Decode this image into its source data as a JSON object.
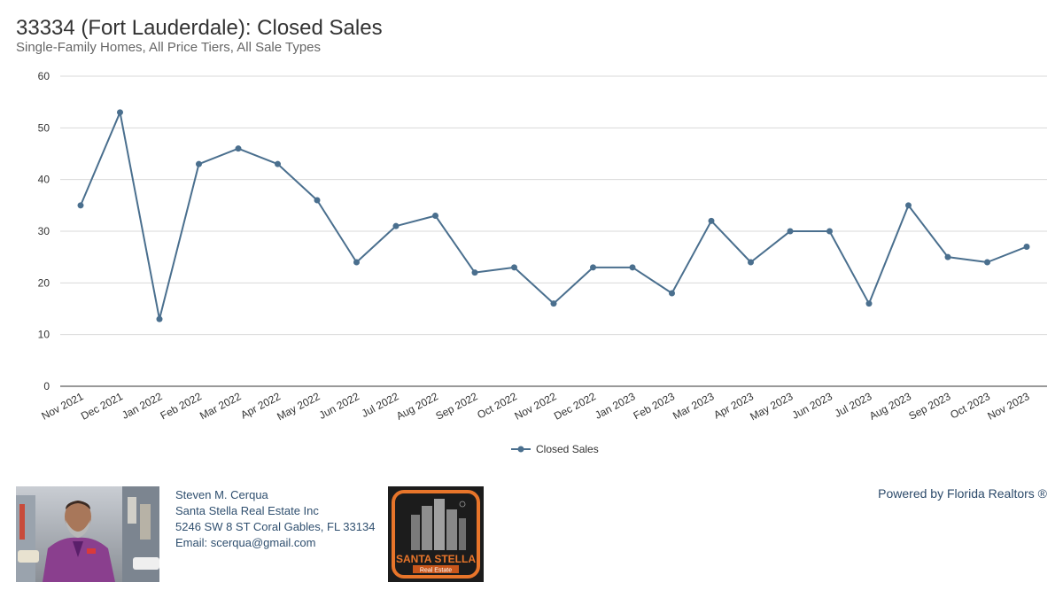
{
  "header": {
    "title": "33334 (Fort Lauderdale): Closed Sales",
    "subtitle": "Single-Family Homes, All Price Tiers, All Sale Types"
  },
  "chart_data": {
    "type": "line",
    "title": "33334 (Fort Lauderdale): Closed Sales",
    "subtitle": "Single-Family Homes, All Price Tiers, All Sale Types",
    "xlabel": "",
    "ylabel": "",
    "ylim": [
      0,
      60
    ],
    "yticks": [
      0,
      10,
      20,
      30,
      40,
      50,
      60
    ],
    "grid": "horizontal",
    "legend_position": "bottom-center",
    "categories": [
      "Nov 2021",
      "Dec 2021",
      "Jan 2022",
      "Feb 2022",
      "Mar 2022",
      "Apr 2022",
      "May 2022",
      "Jun 2022",
      "Jul 2022",
      "Aug 2022",
      "Sep 2022",
      "Oct 2022",
      "Nov 2022",
      "Dec 2022",
      "Jan 2023",
      "Feb 2023",
      "Mar 2023",
      "Apr 2023",
      "May 2023",
      "Jun 2023",
      "Jul 2023",
      "Aug 2023",
      "Sep 2023",
      "Oct 2023",
      "Nov 2023"
    ],
    "series": [
      {
        "name": "Closed Sales",
        "color": "#4a6f8e",
        "values": [
          35,
          53,
          13,
          43,
          46,
          43,
          36,
          24,
          31,
          33,
          22,
          23,
          16,
          23,
          23,
          18,
          32,
          24,
          30,
          30,
          16,
          35,
          25,
          24,
          27
        ]
      }
    ]
  },
  "footer": {
    "contact": {
      "name": "Steven M. Cerqua",
      "company": "Santa Stella Real Estate Inc",
      "address": "5246 SW 8 ST Coral Gables, FL 33134",
      "email": "Email: scerqua@gmail.com"
    },
    "logo": {
      "line1": "SANTA STELLA",
      "line2": "Real Estate",
      "accent_color": "#e8752a"
    },
    "powered_by": "Powered by Florida Realtors ®"
  }
}
